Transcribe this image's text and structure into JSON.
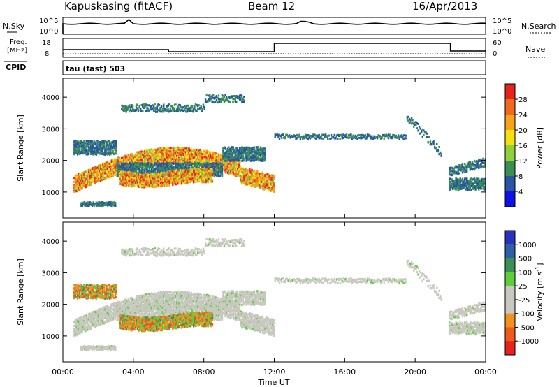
{
  "header": {
    "radar": "Kapuskasing (fitACF)",
    "beam": "Beam 12",
    "date": "16/Apr/2013"
  },
  "top_strips": {
    "nsky_label": "N.Sky",
    "nsearch_label": "N.Search",
    "noise_ticks": [
      "10^5",
      "10^0"
    ],
    "freq_label_1": "Freq.",
    "freq_label_2": "[MHz]",
    "freq_ticks": [
      "18",
      "8"
    ],
    "nave_label": "Nave",
    "nave_ticks": [
      "60",
      "0"
    ],
    "cpid_label": "CPID",
    "cpid_text": "tau (fast) 503"
  },
  "colorbars": {
    "power": {
      "label": "Power [dB]",
      "ticks": [
        "28",
        "24",
        "20",
        "16",
        "12",
        "8",
        "4"
      ],
      "colors": [
        "#e8231f",
        "#f06a1e",
        "#f7a31b",
        "#f5e010",
        "#8ed13a",
        "#3a8f52",
        "#2a55a6",
        "#1010e8"
      ]
    },
    "velocity": {
      "label": "Velocity [m s",
      "label_sup": "-1",
      "label_end": "]",
      "ticks": [
        "1000",
        "500",
        "100",
        "25",
        "-25",
        "-100",
        "-500",
        "-1000"
      ],
      "colors": [
        "#2733c0",
        "#2c60a8",
        "#3d8f58",
        "#5fce3c",
        "#c8c8c0",
        "#c8c8c0",
        "#f0921c",
        "#ee5a1a",
        "#e8231f"
      ]
    }
  },
  "chart_data": [
    {
      "type": "heatmap",
      "name": "power",
      "ylabel": "Slant Range [km]",
      "ylim": [
        180,
        4600
      ],
      "yticks": [
        "1000",
        "2000",
        "3000",
        "4000"
      ],
      "xlim_hours": [
        0,
        24
      ],
      "xticks": [
        "00:00",
        "04:00",
        "08:00",
        "12:00",
        "16:00",
        "20:00",
        "00:00"
      ]
    },
    {
      "type": "heatmap",
      "name": "velocity",
      "ylabel": "Slant Range [km]",
      "xlabel": "Time UT",
      "ylim": [
        180,
        4600
      ],
      "yticks": [
        "1000",
        "2000",
        "3000",
        "4000"
      ],
      "xlim_hours": [
        0,
        24
      ],
      "xticks": [
        "00:00",
        "04:00",
        "08:00",
        "12:00",
        "16:00",
        "20:00",
        "00:00"
      ]
    }
  ]
}
